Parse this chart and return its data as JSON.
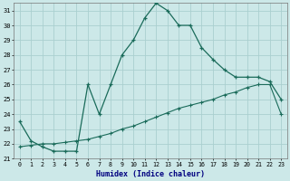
{
  "xlabel": "Humidex (Indice chaleur)",
  "background_color": "#cce8e8",
  "grid_color": "#aacfcf",
  "line_color": "#1a6b5a",
  "xlim": [
    -0.5,
    23.5
  ],
  "ylim": [
    21,
    31.5
  ],
  "yticks": [
    21,
    22,
    23,
    24,
    25,
    26,
    27,
    28,
    29,
    30,
    31
  ],
  "xticks": [
    0,
    1,
    2,
    3,
    4,
    5,
    6,
    7,
    8,
    9,
    10,
    11,
    12,
    13,
    14,
    15,
    16,
    17,
    18,
    19,
    20,
    21,
    22,
    23
  ],
  "curve1_x": [
    0,
    1,
    2,
    3,
    4,
    5,
    6,
    7,
    8,
    9,
    10,
    11,
    12,
    13,
    14,
    15,
    16,
    17,
    18,
    19,
    20,
    21,
    22,
    23
  ],
  "curve1_y": [
    23.5,
    22.2,
    21.8,
    21.5,
    21.5,
    21.5,
    26.0,
    24.0,
    26.0,
    28.0,
    29.0,
    30.5,
    31.5,
    31.0,
    30.0,
    30.0,
    28.5,
    27.7,
    27.0,
    26.5,
    26.5,
    26.5,
    26.2,
    25.0
  ],
  "curve2_x": [
    0,
    1,
    2,
    3,
    4,
    5,
    6,
    7,
    8,
    9,
    10,
    11,
    12,
    13,
    14,
    15,
    16,
    17,
    18,
    19,
    20,
    21,
    22,
    23
  ],
  "curve2_y": [
    21.8,
    21.9,
    22.0,
    22.0,
    22.1,
    22.2,
    22.3,
    22.5,
    22.7,
    23.0,
    23.2,
    23.5,
    23.8,
    24.1,
    24.4,
    24.6,
    24.8,
    25.0,
    25.3,
    25.5,
    25.8,
    26.0,
    26.0,
    24.0
  ]
}
